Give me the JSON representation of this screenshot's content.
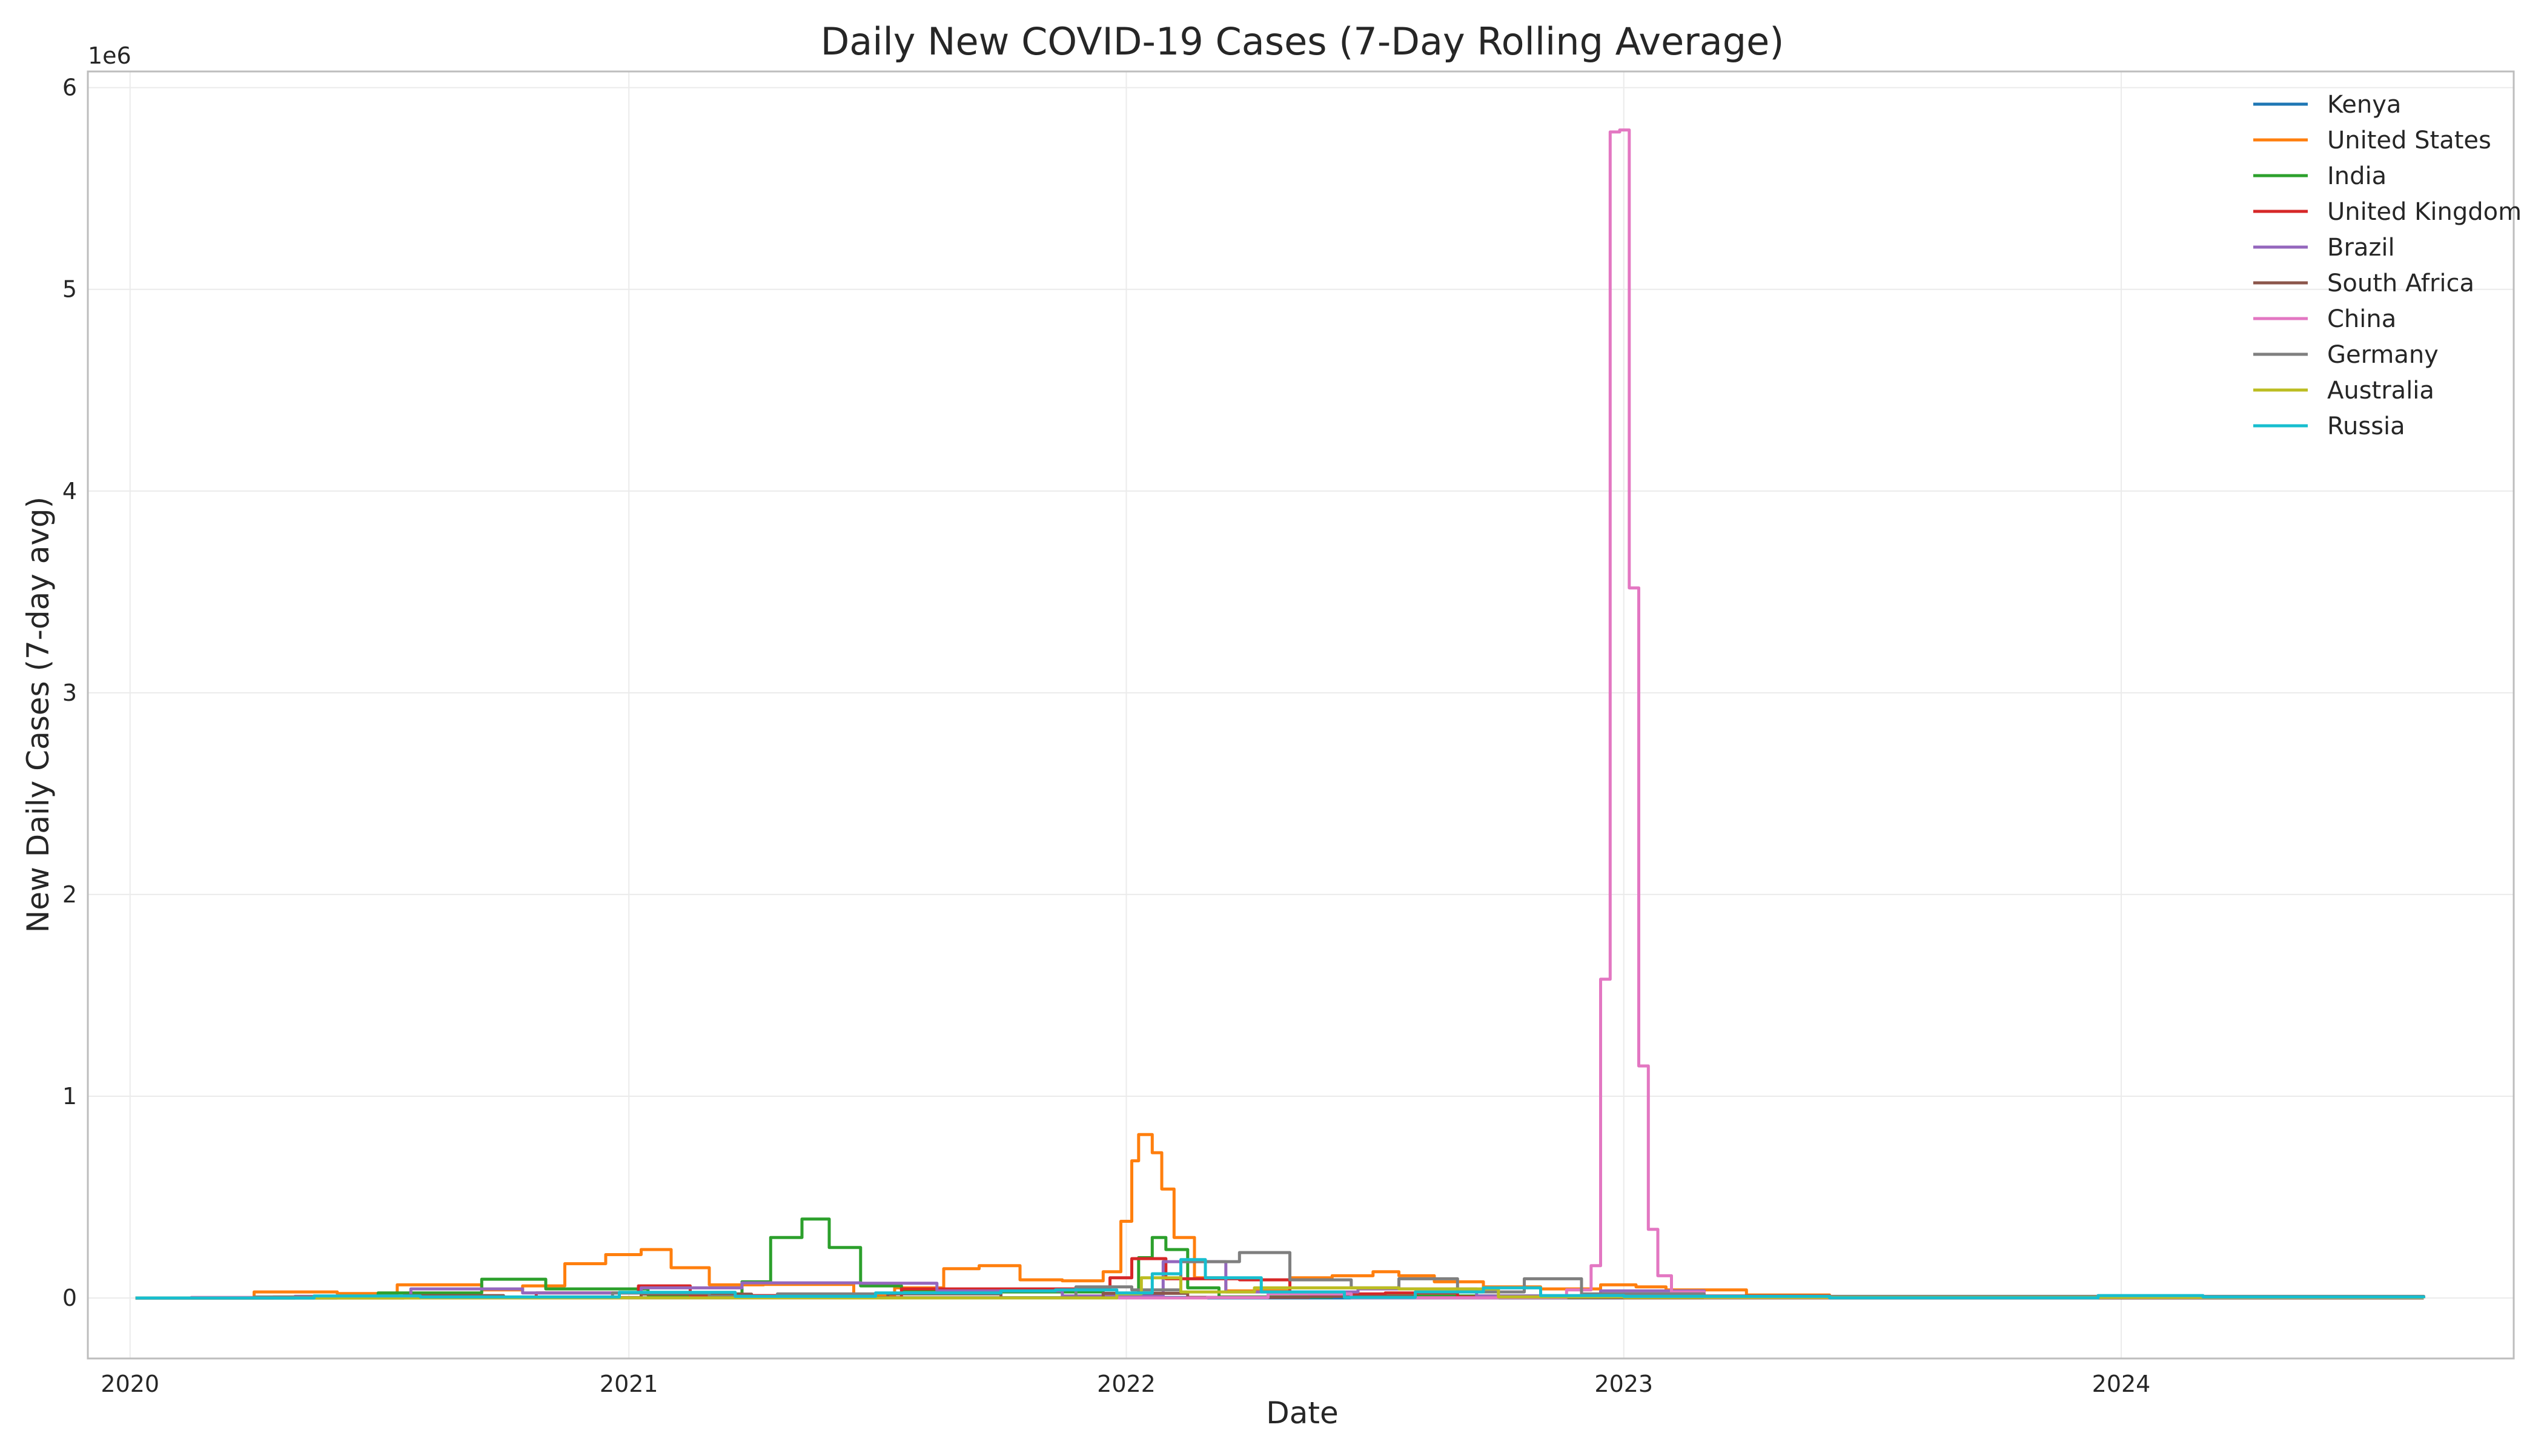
{
  "chart_data": {
    "type": "line",
    "title": "Daily New COVID-19 Cases (7-Day Rolling Average)",
    "xlabel": "Date",
    "ylabel": "New Daily Cases (7-day avg)",
    "y_offset_text": "1e6",
    "x_ticks": [
      "2020",
      "2021",
      "2022",
      "2023",
      "2024"
    ],
    "y_ticks": [
      "0",
      "1",
      "2",
      "3",
      "4",
      "5",
      "6"
    ],
    "xlim": [
      "2019-12-01",
      "2024-10-15"
    ],
    "ylim": [
      -300000,
      6080000
    ],
    "grid": true,
    "legend_position": "top-right",
    "series": [
      {
        "name": "Kenya",
        "color": "#1f77b4",
        "x": [
          "2020-01-05",
          "2020-06-01",
          "2020-11-15",
          "2021-04-01",
          "2021-07-15",
          "2021-12-20",
          "2022-03-01",
          "2022-12-01",
          "2023-06-01",
          "2024-08-10"
        ],
        "y": [
          0,
          1000,
          1200,
          1500,
          800,
          2500,
          300,
          100,
          0,
          0
        ]
      },
      {
        "name": "United States",
        "color": "#ff7f0e",
        "x": [
          "2020-01-05",
          "2020-03-01",
          "2020-04-01",
          "2020-06-01",
          "2020-07-15",
          "2020-09-15",
          "2020-10-15",
          "2020-11-15",
          "2020-12-15",
          "2021-01-10",
          "2021-02-01",
          "2021-03-01",
          "2021-04-10",
          "2021-06-15",
          "2021-07-15",
          "2021-08-20",
          "2021-09-15",
          "2021-10-15",
          "2021-11-15",
          "2021-12-15",
          "2021-12-28",
          "2022-01-05",
          "2022-01-10",
          "2022-01-20",
          "2022-01-27",
          "2022-02-05",
          "2022-02-20",
          "2022-03-15",
          "2022-05-01",
          "2022-06-01",
          "2022-07-01",
          "2022-07-20",
          "2022-08-15",
          "2022-09-20",
          "2022-11-01",
          "2022-12-15",
          "2023-01-10",
          "2023-02-01",
          "2023-04-01",
          "2023-06-01",
          "2024-08-10"
        ],
        "y": [
          0,
          1000,
          30000,
          22000,
          65000,
          40000,
          60000,
          170000,
          215000,
          240000,
          150000,
          65000,
          67000,
          12000,
          50000,
          145000,
          160000,
          90000,
          85000,
          130000,
          380000,
          680000,
          810000,
          720000,
          540000,
          300000,
          100000,
          35000,
          100000,
          110000,
          130000,
          110000,
          80000,
          55000,
          45000,
          65000,
          55000,
          40000,
          15000,
          5000,
          0
        ]
      },
      {
        "name": "India",
        "color": "#2ca02c",
        "x": [
          "2020-01-05",
          "2020-05-01",
          "2020-07-01",
          "2020-09-15",
          "2020-11-01",
          "2021-01-15",
          "2021-03-01",
          "2021-03-25",
          "2021-04-15",
          "2021-05-08",
          "2021-05-28",
          "2021-06-20",
          "2021-07-20",
          "2021-09-01",
          "2021-12-15",
          "2022-01-10",
          "2022-01-20",
          "2022-01-30",
          "2022-02-15",
          "2022-03-10",
          "2022-06-01",
          "2023-01-01",
          "2024-08-10"
        ],
        "y": [
          0,
          3000,
          25000,
          93000,
          45000,
          15000,
          20000,
          80000,
          300000,
          391000,
          250000,
          60000,
          40000,
          30000,
          8000,
          200000,
          300000,
          240000,
          50000,
          5000,
          10000,
          500,
          0
        ]
      },
      {
        "name": "United Kingdom",
        "color": "#d62728",
        "x": [
          "2020-01-05",
          "2020-04-15",
          "2020-07-01",
          "2020-10-25",
          "2021-01-08",
          "2021-02-15",
          "2021-05-01",
          "2021-07-20",
          "2021-10-20",
          "2021-12-20",
          "2022-01-05",
          "2022-01-30",
          "2022-03-25",
          "2022-05-01",
          "2022-07-10",
          "2022-09-01",
          "2022-12-01",
          "2023-06-01",
          "2024-08-10"
        ],
        "y": [
          0,
          5000,
          700,
          25000,
          60000,
          12000,
          2000,
          45000,
          45000,
          100000,
          195000,
          95000,
          90000,
          20000,
          25000,
          5000,
          10000,
          1000,
          0
        ]
      },
      {
        "name": "Brazil",
        "color": "#9467bd",
        "x": [
          "2020-01-05",
          "2020-05-01",
          "2020-07-25",
          "2020-10-15",
          "2021-01-10",
          "2021-03-25",
          "2021-06-20",
          "2021-08-15",
          "2021-11-15",
          "2022-01-28",
          "2022-03-15",
          "2022-06-20",
          "2022-09-15",
          "2022-12-15",
          "2023-03-01",
          "2024-08-10"
        ],
        "y": [
          0,
          8000,
          45000,
          25000,
          50000,
          75000,
          73000,
          35000,
          10000,
          180000,
          30000,
          45000,
          10000,
          35000,
          5000,
          0
        ]
      },
      {
        "name": "South Africa",
        "color": "#8c564b",
        "x": [
          "2020-01-05",
          "2020-07-20",
          "2020-10-01",
          "2021-01-10",
          "2021-04-01",
          "2021-07-10",
          "2021-10-01",
          "2021-12-15",
          "2022-02-15",
          "2022-05-15",
          "2022-08-01",
          "2023-01-01",
          "2024-08-10"
        ],
        "y": [
          0,
          12000,
          2000,
          19000,
          1200,
          20000,
          500,
          23000,
          3000,
          8000,
          1000,
          300,
          0
        ]
      },
      {
        "name": "China",
        "color": "#e377c2",
        "x": [
          "2020-01-05",
          "2020-02-15",
          "2020-04-01",
          "2022-03-01",
          "2022-04-15",
          "2022-06-15",
          "2022-10-01",
          "2022-11-20",
          "2022-12-08",
          "2022-12-15",
          "2022-12-22",
          "2022-12-29",
          "2023-01-05",
          "2023-01-12",
          "2023-01-19",
          "2023-01-26",
          "2023-02-05",
          "2023-03-01",
          "2024-08-10"
        ],
        "y": [
          0,
          3000,
          100,
          2000,
          20000,
          1000,
          2000,
          40000,
          160000,
          1580000,
          5780000,
          5790000,
          3520000,
          1150000,
          340000,
          110000,
          30000,
          2000,
          0
        ]
      },
      {
        "name": "Germany",
        "color": "#7f7f7f",
        "x": [
          "2020-01-05",
          "2020-04-01",
          "2020-07-01",
          "2020-12-20",
          "2021-03-01",
          "2021-04-20",
          "2021-07-01",
          "2021-11-25",
          "2022-01-05",
          "2022-02-10",
          "2022-03-25",
          "2022-05-01",
          "2022-06-15",
          "2022-07-20",
          "2022-09-01",
          "2022-10-20",
          "2022-12-01",
          "2023-03-01",
          "2024-08-10"
        ],
        "y": [
          0,
          5000,
          500,
          25000,
          8000,
          20000,
          700,
          55000,
          40000,
          180000,
          225000,
          90000,
          50000,
          95000,
          30000,
          95000,
          20000,
          8000,
          0
        ]
      },
      {
        "name": "Australia",
        "color": "#bcbd22",
        "x": [
          "2020-01-05",
          "2020-08-01",
          "2021-06-01",
          "2021-12-25",
          "2022-01-12",
          "2022-02-10",
          "2022-04-05",
          "2022-07-20",
          "2022-10-01",
          "2023-01-01",
          "2024-08-10"
        ],
        "y": [
          0,
          500,
          300,
          20000,
          100000,
          30000,
          50000,
          45000,
          5000,
          3000,
          0
        ]
      },
      {
        "name": "Russia",
        "color": "#17becf",
        "x": [
          "2020-01-05",
          "2020-05-15",
          "2020-08-01",
          "2020-12-25",
          "2021-03-20",
          "2021-07-01",
          "2021-10-01",
          "2021-11-10",
          "2021-12-25",
          "2022-01-20",
          "2022-02-10",
          "2022-02-28",
          "2022-04-10",
          "2022-06-10",
          "2022-08-01",
          "2022-09-20",
          "2022-11-01",
          "2023-01-01",
          "2023-06-01",
          "2023-12-15",
          "2024-03-01",
          "2024-08-10"
        ],
        "y": [
          0,
          10000,
          5000,
          28000,
          8000,
          25000,
          35000,
          40000,
          25000,
          120000,
          190000,
          100000,
          30000,
          3000,
          30000,
          50000,
          12000,
          8000,
          1000,
          12000,
          5000,
          0
        ]
      }
    ]
  }
}
